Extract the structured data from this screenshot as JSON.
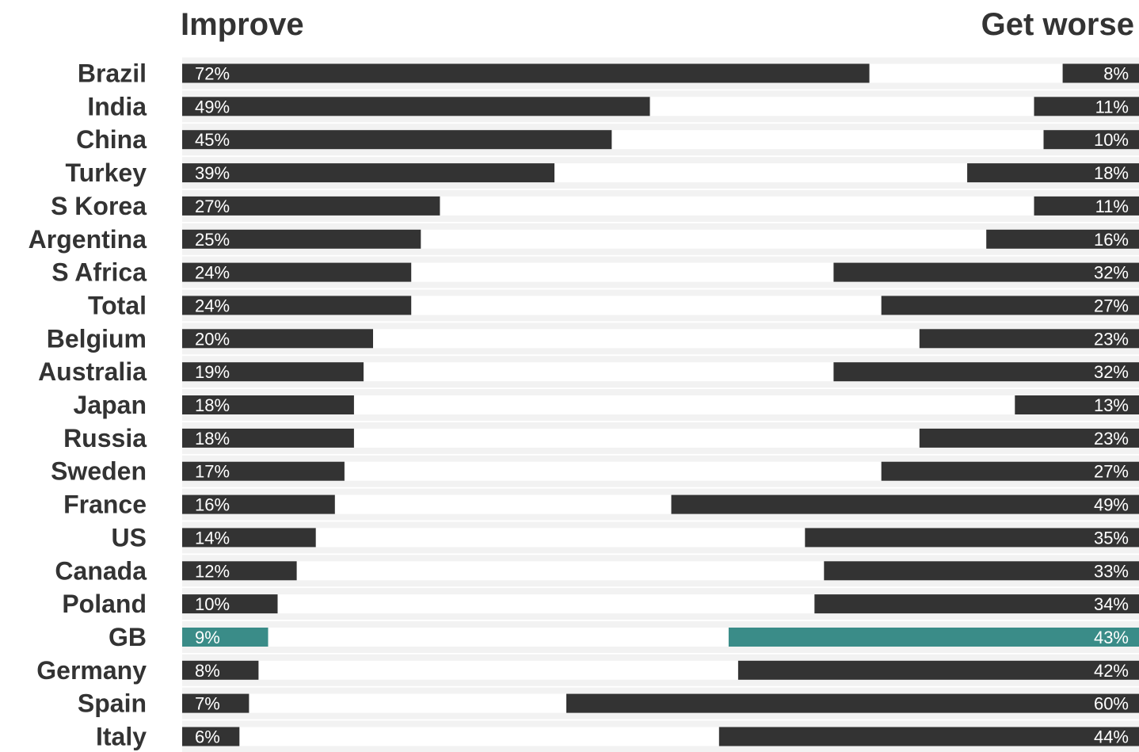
{
  "chart_data": {
    "type": "bar",
    "headers": {
      "left": "Improve",
      "right": "Get worse"
    },
    "categories": [
      "Brazil",
      "India",
      "China",
      "Turkey",
      "S Korea",
      "Argentina",
      "S Africa",
      "Total",
      "Belgium",
      "Australia",
      "Japan",
      "Russia",
      "Sweden",
      "France",
      "US",
      "Canada",
      "Poland",
      "GB",
      "Germany",
      "Spain",
      "Italy"
    ],
    "series": [
      {
        "name": "Improve",
        "values": [
          72,
          49,
          45,
          39,
          27,
          25,
          24,
          24,
          20,
          19,
          18,
          18,
          17,
          16,
          14,
          12,
          10,
          9,
          8,
          7,
          6
        ],
        "labels": [
          "72%",
          "49%",
          "45%",
          "39%",
          "27%",
          "25%",
          "24%",
          "24%",
          "20%",
          "19%",
          "18%",
          "18%",
          "17%",
          "16%",
          "14%",
          "12%",
          "10%",
          "9%",
          "8%",
          "7%",
          "6%"
        ]
      },
      {
        "name": "Get worse",
        "values": [
          8,
          11,
          10,
          18,
          11,
          16,
          32,
          27,
          23,
          32,
          13,
          23,
          27,
          49,
          35,
          33,
          34,
          43,
          42,
          60,
          44
        ],
        "labels": [
          "8%",
          "11%",
          "10%",
          "18%",
          "11%",
          "16%",
          "32%",
          "27%",
          "23%",
          "32%",
          "13%",
          "23%",
          "27%",
          "49%",
          "35%",
          "33%",
          "34%",
          "43%",
          "42%",
          "60%",
          "44%"
        ]
      }
    ],
    "highlight": "GB",
    "colors": {
      "bar": "#333333",
      "highlight": "#3a8c88",
      "band": "#f2f2f2",
      "text": "#333333",
      "value_text": "#ffffff"
    },
    "grid": false,
    "legend": "none"
  }
}
